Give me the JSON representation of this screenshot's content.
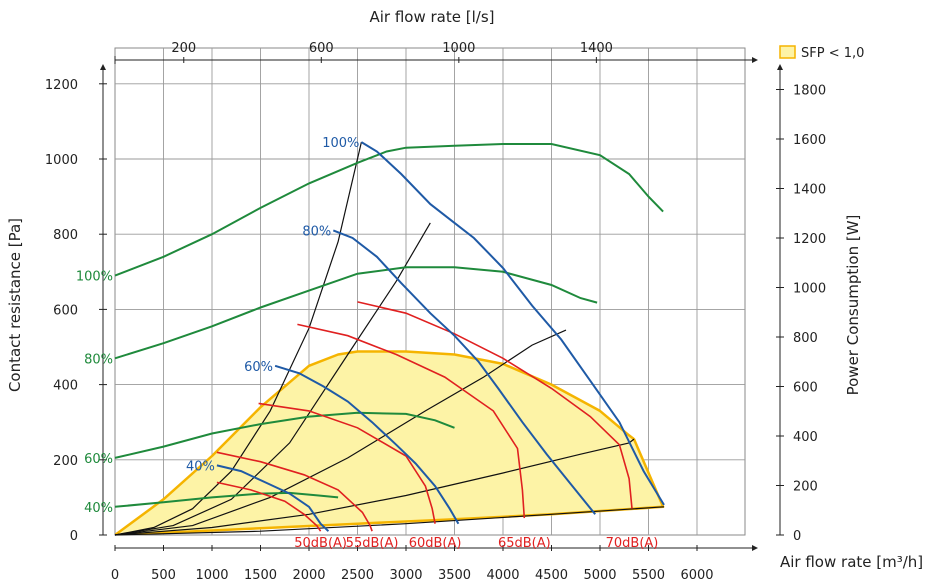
{
  "chart_data": {
    "type": "line",
    "title": "",
    "top_axis": {
      "label": "Air flow rate [l/s]",
      "ticks": [
        200,
        600,
        1000,
        1400
      ],
      "range": [
        0,
        1810
      ]
    },
    "x_axis": {
      "label": "Air flow rate [m³/h]",
      "ticks": [
        0,
        500,
        1000,
        1500,
        2000,
        2500,
        3000,
        3500,
        4000,
        4500,
        5000,
        5500,
        6000
      ],
      "range": [
        0,
        6500
      ]
    },
    "y_axis": {
      "label": "Contact resistance [Pa]",
      "ticks": [
        0,
        200,
        400,
        600,
        800,
        1000,
        1200
      ],
      "range": [
        0,
        1200
      ]
    },
    "right_axis": {
      "label": "Power Consumption [W]",
      "ticks": [
        0,
        200,
        400,
        600,
        800,
        1000,
        1200,
        1400,
        1600,
        1800
      ],
      "range": [
        0,
        1800
      ]
    },
    "grid": true,
    "legend": {
      "position": "top-right",
      "entries": [
        {
          "label": "SFP < 1,0",
          "color": "#fdf3a6",
          "border": "#f5b400"
        }
      ]
    },
    "colors": {
      "fan": "#1f5aa6",
      "power": "#1f8a3c",
      "sound": "#e02020",
      "system": "#111111",
      "sfp_fill": "#fdf3a6",
      "sfp_stroke": "#f5b400",
      "grid": "#9a9a9a"
    },
    "sfp_region": {
      "label": "SFP < 1,0",
      "points": [
        [
          0,
          0
        ],
        [
          500,
          95
        ],
        [
          1000,
          210
        ],
        [
          1500,
          340
        ],
        [
          2000,
          450
        ],
        [
          2300,
          480
        ],
        [
          2500,
          488
        ],
        [
          3000,
          488
        ],
        [
          3500,
          480
        ],
        [
          4000,
          455
        ],
        [
          4500,
          400
        ],
        [
          5000,
          330
        ],
        [
          5300,
          265
        ],
        [
          5350,
          255
        ],
        [
          5650,
          75
        ],
        [
          4500,
          55
        ],
        [
          3500,
          42
        ],
        [
          2500,
          30
        ],
        [
          1500,
          18
        ],
        [
          0,
          0
        ]
      ]
    },
    "fan_curves": [
      {
        "label": "100%",
        "points": [
          [
            2540,
            1045
          ],
          [
            2700,
            1020
          ],
          [
            2950,
            960
          ],
          [
            3250,
            880
          ],
          [
            3500,
            830
          ],
          [
            3700,
            790
          ],
          [
            4000,
            710
          ],
          [
            4300,
            610
          ],
          [
            4600,
            520
          ],
          [
            4900,
            410
          ],
          [
            5200,
            300
          ],
          [
            5450,
            170
          ],
          [
            5660,
            80
          ]
        ]
      },
      {
        "label": "80%",
        "points": [
          [
            2250,
            810
          ],
          [
            2450,
            790
          ],
          [
            2700,
            740
          ],
          [
            2950,
            670
          ],
          [
            3250,
            590
          ],
          [
            3500,
            530
          ],
          [
            3750,
            460
          ],
          [
            3950,
            390
          ],
          [
            4200,
            300
          ],
          [
            4450,
            215
          ],
          [
            4700,
            135
          ],
          [
            4950,
            55
          ]
        ]
      },
      {
        "label": "60%",
        "points": [
          [
            1650,
            450
          ],
          [
            1900,
            430
          ],
          [
            2150,
            395
          ],
          [
            2400,
            355
          ],
          [
            2650,
            300
          ],
          [
            2900,
            240
          ],
          [
            3100,
            190
          ],
          [
            3300,
            130
          ],
          [
            3450,
            70
          ],
          [
            3540,
            30
          ]
        ]
      },
      {
        "label": "40%",
        "points": [
          [
            1050,
            185
          ],
          [
            1300,
            170
          ],
          [
            1550,
            140
          ],
          [
            1800,
            110
          ],
          [
            2000,
            75
          ],
          [
            2120,
            30
          ],
          [
            2200,
            10
          ]
        ]
      }
    ],
    "power_curves": [
      {
        "label": "100%",
        "points": [
          [
            0,
            690
          ],
          [
            500,
            740
          ],
          [
            1000,
            800
          ],
          [
            1500,
            870
          ],
          [
            2000,
            935
          ],
          [
            2500,
            990
          ],
          [
            2800,
            1020
          ],
          [
            3000,
            1030
          ],
          [
            3500,
            1035
          ],
          [
            4000,
            1040
          ],
          [
            4500,
            1040
          ],
          [
            5000,
            1010
          ],
          [
            5300,
            960
          ],
          [
            5500,
            900
          ],
          [
            5650,
            860
          ]
        ]
      },
      {
        "label": "80%",
        "points": [
          [
            0,
            470
          ],
          [
            500,
            510
          ],
          [
            1000,
            555
          ],
          [
            1500,
            605
          ],
          [
            2000,
            650
          ],
          [
            2500,
            695
          ],
          [
            3000,
            712
          ],
          [
            3500,
            712
          ],
          [
            4000,
            700
          ],
          [
            4500,
            665
          ],
          [
            4800,
            630
          ],
          [
            4970,
            618
          ]
        ]
      },
      {
        "label": "60%",
        "points": [
          [
            0,
            205
          ],
          [
            500,
            235
          ],
          [
            1000,
            270
          ],
          [
            1500,
            295
          ],
          [
            2000,
            315
          ],
          [
            2500,
            325
          ],
          [
            3000,
            322
          ],
          [
            3300,
            305
          ],
          [
            3500,
            285
          ]
        ]
      },
      {
        "label": "40%",
        "points": [
          [
            0,
            75
          ],
          [
            500,
            87
          ],
          [
            1000,
            100
          ],
          [
            1500,
            110
          ],
          [
            1800,
            112
          ],
          [
            2100,
            105
          ],
          [
            2300,
            100
          ]
        ]
      }
    ],
    "sound_curves": [
      {
        "label": "50dB(A)",
        "points": [
          [
            1050,
            140
          ],
          [
            1400,
            120
          ],
          [
            1750,
            90
          ],
          [
            1950,
            55
          ],
          [
            2080,
            25
          ],
          [
            2120,
            10
          ]
        ]
      },
      {
        "label": "55dB(A)",
        "points": [
          [
            1050,
            220
          ],
          [
            1500,
            195
          ],
          [
            1950,
            160
          ],
          [
            2300,
            120
          ],
          [
            2550,
            60
          ],
          [
            2630,
            25
          ],
          [
            2650,
            10
          ]
        ]
      },
      {
        "label": "60dB(A)",
        "points": [
          [
            1480,
            350
          ],
          [
            2000,
            330
          ],
          [
            2500,
            285
          ],
          [
            3000,
            210
          ],
          [
            3200,
            130
          ],
          [
            3270,
            70
          ],
          [
            3300,
            30
          ]
        ]
      },
      {
        "label": "65dB(A)",
        "points": [
          [
            1880,
            560
          ],
          [
            2400,
            530
          ],
          [
            2900,
            480
          ],
          [
            3400,
            420
          ],
          [
            3900,
            330
          ],
          [
            4150,
            230
          ],
          [
            4200,
            120
          ],
          [
            4220,
            45
          ]
        ]
      },
      {
        "label": "70dB(A)",
        "points": [
          [
            2500,
            620
          ],
          [
            3000,
            590
          ],
          [
            3500,
            535
          ],
          [
            4000,
            470
          ],
          [
            4500,
            390
          ],
          [
            4900,
            315
          ],
          [
            5200,
            240
          ],
          [
            5300,
            150
          ],
          [
            5330,
            70
          ]
        ]
      }
    ],
    "system_curves": [
      {
        "points": [
          [
            0,
            0
          ],
          [
            400,
            20
          ],
          [
            800,
            70
          ],
          [
            1200,
            170
          ],
          [
            1600,
            330
          ],
          [
            2000,
            550
          ],
          [
            2300,
            780
          ],
          [
            2540,
            1045
          ]
        ]
      },
      {
        "points": [
          [
            0,
            0
          ],
          [
            600,
            25
          ],
          [
            1200,
            95
          ],
          [
            1800,
            245
          ],
          [
            2400,
            480
          ],
          [
            2900,
            675
          ],
          [
            3250,
            830
          ]
        ]
      },
      {
        "points": [
          [
            0,
            0
          ],
          [
            800,
            25
          ],
          [
            1600,
            100
          ],
          [
            2400,
            205
          ],
          [
            3200,
            330
          ],
          [
            3800,
            420
          ],
          [
            4300,
            505
          ],
          [
            4650,
            545
          ]
        ]
      },
      {
        "points": [
          [
            0,
            0
          ],
          [
            1000,
            20
          ],
          [
            2000,
            55
          ],
          [
            3000,
            105
          ],
          [
            4000,
            165
          ],
          [
            4800,
            215
          ],
          [
            5300,
            245
          ],
          [
            5350,
            255
          ]
        ]
      },
      {
        "points": [
          [
            0,
            0
          ],
          [
            1500,
            10
          ],
          [
            3000,
            30
          ],
          [
            4500,
            55
          ],
          [
            5660,
            75
          ]
        ]
      }
    ]
  }
}
